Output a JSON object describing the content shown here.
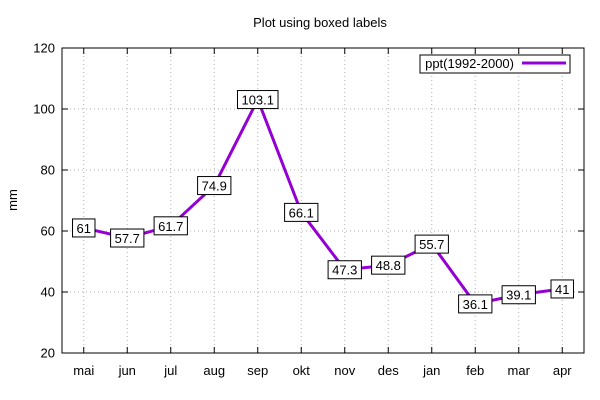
{
  "chart_data": {
    "type": "line",
    "title": "Plot using boxed labels",
    "xlabel": "",
    "ylabel": "mm",
    "categories": [
      "mai",
      "jun",
      "jul",
      "aug",
      "sep",
      "okt",
      "nov",
      "des",
      "jan",
      "feb",
      "mar",
      "apr"
    ],
    "series": [
      {
        "name": "ppt(1992-2000)",
        "values": [
          61,
          57.7,
          61.7,
          74.9,
          103.1,
          66.1,
          47.3,
          48.8,
          55.7,
          36.1,
          39.1,
          41
        ],
        "color": "#9400d3"
      }
    ],
    "data_labels": [
      "61",
      "57.7",
      "61.7",
      "74.9",
      "103.1",
      "66.1",
      "47.3",
      "48.8",
      "55.7",
      "36.1",
      "39.1",
      "41"
    ],
    "ylim": [
      20,
      120
    ],
    "yticks": [
      20,
      40,
      60,
      80,
      100,
      120
    ],
    "grid": true,
    "legend": "top-right"
  }
}
